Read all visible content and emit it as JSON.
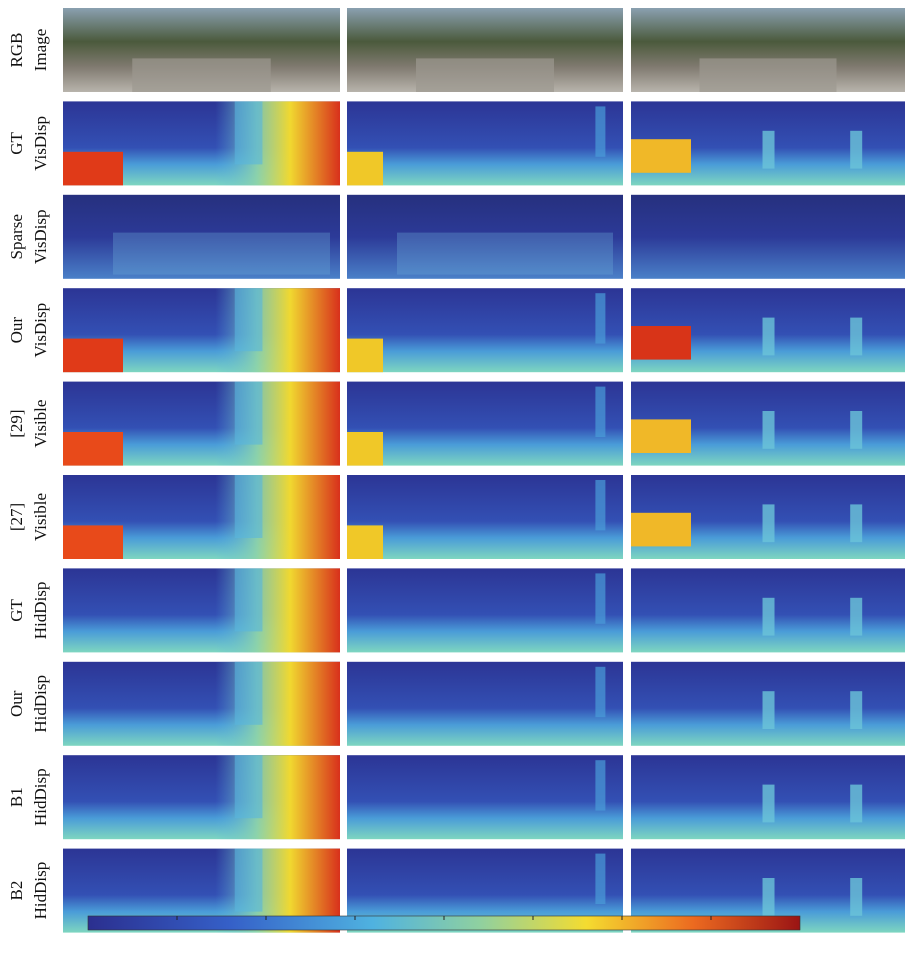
{
  "rows": [
    {
      "line1": "RGB",
      "line2": "Image"
    },
    {
      "line1": "GT",
      "line2": "VisDisp"
    },
    {
      "line1": "Sparse",
      "line2": "VisDisp"
    },
    {
      "line1": "Our",
      "line2": "VisDisp"
    },
    {
      "line1": "[29]",
      "line2": "Visible"
    },
    {
      "line1": "[27]",
      "line2": "Visible"
    },
    {
      "line1": "GT",
      "line2": "HidDisp"
    },
    {
      "line1": "Our",
      "line2": "HidDisp"
    },
    {
      "line1": "B1",
      "line2": "HidDisp"
    },
    {
      "line1": "B2",
      "line2": "HidDisp"
    }
  ]
}
